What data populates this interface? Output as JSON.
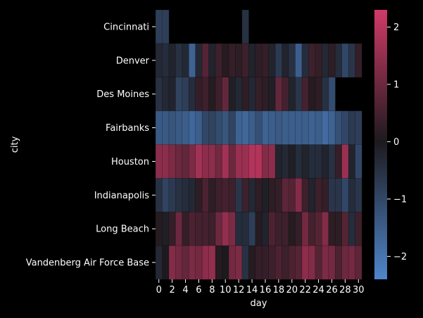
{
  "chart_data": {
    "type": "heatmap",
    "title": "",
    "xlabel": "day",
    "ylabel": "city",
    "x": [
      0,
      1,
      2,
      3,
      4,
      5,
      6,
      7,
      8,
      9,
      10,
      11,
      12,
      13,
      14,
      15,
      16,
      17,
      18,
      19,
      20,
      21,
      22,
      23,
      24,
      25,
      26,
      27,
      28,
      29,
      30
    ],
    "x_tick_labels": [
      "0",
      "2",
      "4",
      "6",
      "8",
      "10",
      "12",
      "14",
      "16",
      "18",
      "20",
      "22",
      "24",
      "26",
      "28",
      "30"
    ],
    "y": [
      "Cincinnati",
      "Denver",
      "Des Moines",
      "Fairbanks",
      "Houston",
      "Indianapolis",
      "Long Beach",
      "Vandenberg Air Force Base"
    ],
    "colorbar": {
      "min": -2.4,
      "max": 2.3,
      "ticks": [
        "2",
        "1",
        "0",
        "−1",
        "−2"
      ],
      "tick_values": [
        2,
        1,
        0,
        -1,
        -2
      ]
    },
    "colors": {
      "low": "#4f86cc",
      "mid": "#1d1a1e",
      "high": "#d13a68",
      "background": "#000000"
    },
    "values": [
      [
        -0.8,
        -0.8,
        null,
        null,
        null,
        null,
        null,
        null,
        null,
        null,
        null,
        null,
        null,
        -0.5,
        null,
        null,
        null,
        null,
        null,
        null,
        null,
        null,
        null,
        null,
        null,
        null,
        null,
        null,
        null,
        null,
        null
      ],
      [
        -0.3,
        -0.4,
        -0.2,
        -0.5,
        -0.3,
        -1.6,
        -0.3,
        0.7,
        -0.2,
        0.4,
        0.1,
        0.3,
        0.2,
        0.4,
        -0.2,
        0.2,
        0.3,
        -0.2,
        -0.7,
        -0.2,
        -0.5,
        -1.5,
        -0.4,
        0.4,
        0.3,
        -0.3,
        0.2,
        -0.4,
        -1.0,
        -0.6,
        0.3
      ],
      [
        -0.5,
        -0.3,
        -0.2,
        -0.9,
        -0.8,
        -0.4,
        0.3,
        0.4,
        0.1,
        0.4,
        0.9,
        -0.1,
        -0.3,
        0.2,
        -0.3,
        0.3,
        0.2,
        -0.1,
        0.9,
        0.5,
        -0.2,
        -0.6,
        0.5,
        0.1,
        0.2,
        -0.5,
        -1.1,
        null,
        null,
        null,
        null
      ],
      [
        -1.4,
        -1.4,
        -1.3,
        -1.4,
        -1.5,
        -1.7,
        -1.5,
        -1.0,
        -0.9,
        -1.1,
        -1.3,
        -0.9,
        -1.6,
        -1.7,
        -1.5,
        -1.2,
        -1.6,
        -1.5,
        -1.4,
        -1.5,
        -1.5,
        -1.5,
        -1.5,
        -1.6,
        -1.5,
        -1.8,
        -1.6,
        -1.2,
        -1.0,
        -0.7,
        -0.8
      ],
      [
        1.4,
        1.4,
        1.2,
        1.0,
        0.9,
        1.2,
        1.7,
        1.4,
        1.4,
        1.1,
        1.7,
        1.0,
        1.6,
        1.6,
        1.9,
        1.9,
        1.3,
        1.4,
        -0.2,
        -0.3,
        -0.1,
        -0.4,
        -0.2,
        -0.4,
        -0.4,
        -0.2,
        -0.5,
        0.3,
        1.6,
        -0.2,
        -1.0
      ],
      [
        -0.5,
        -0.9,
        -0.7,
        -0.5,
        -0.4,
        -0.3,
        0.2,
        0.6,
        0.2,
        0.4,
        0.5,
        0.4,
        -0.6,
        0.4,
        -0.3,
        0.2,
        -0.1,
        0.2,
        0.3,
        0.8,
        0.7,
        1.3,
        0.4,
        -0.2,
        0.4,
        0.3,
        -0.6,
        -0.6,
        -1.0,
        -0.4,
        -0.6
      ],
      [
        0.1,
        -0.1,
        0.3,
        1.0,
        0.3,
        0.6,
        0.5,
        0.5,
        0.4,
        1.0,
        1.5,
        1.2,
        -0.4,
        -0.4,
        -0.8,
        0.1,
        -0.2,
        0.6,
        0.4,
        0.4,
        0.1,
        0.3,
        1.1,
        0.5,
        0.7,
        1.3,
        0.2,
        0.2,
        0.7,
        -0.4,
        0.4
      ],
      [
        -0.3,
        0.0,
        1.3,
        1.1,
        0.9,
        1.2,
        1.1,
        1.4,
        1.5,
        0.1,
        0.0,
        1.1,
        1.2,
        -0.5,
        0.1,
        0.3,
        0.3,
        0.4,
        0.6,
        0.4,
        0.6,
        0.7,
        1.4,
        1.3,
        0.7,
        1.2,
        1.1,
        0.6,
        1.0,
        1.1,
        0.8
      ]
    ]
  }
}
